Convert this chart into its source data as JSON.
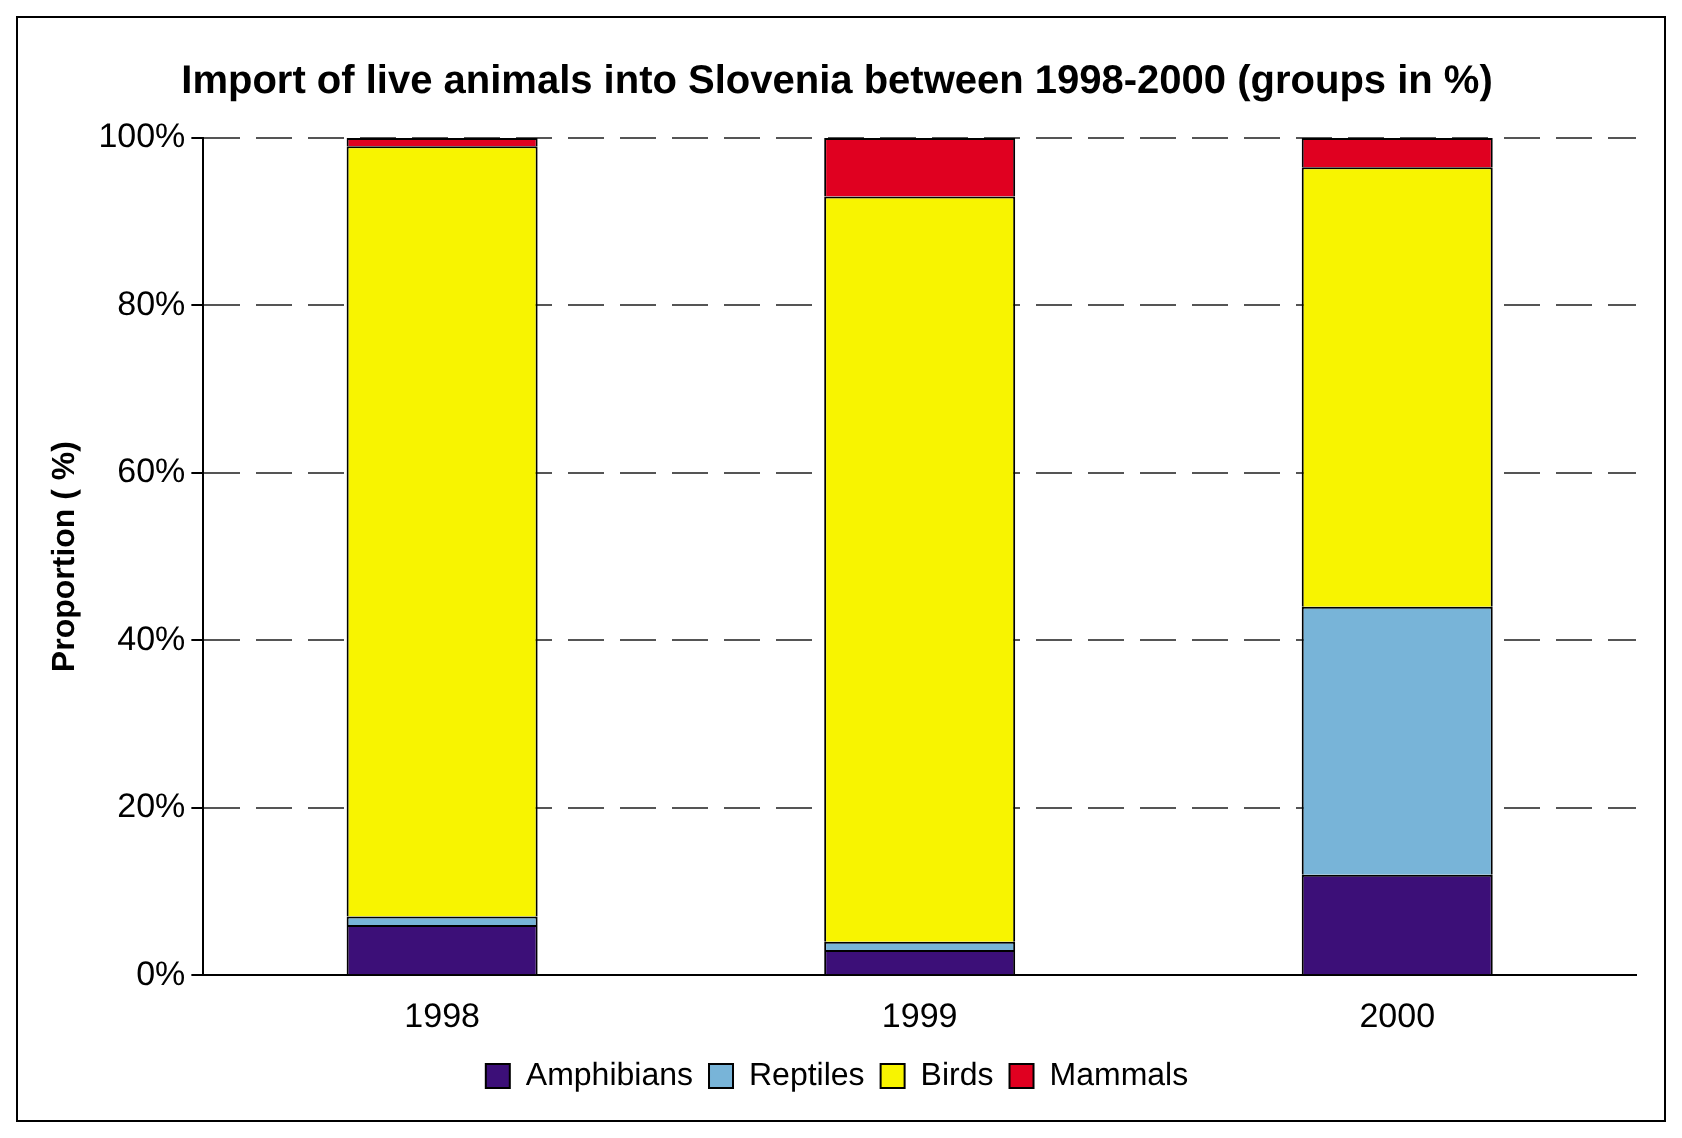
{
  "chart_data": {
    "type": "bar",
    "title": "Import of live animals into Slovenia between 1998-2000 (groups in %)",
    "ylabel": "Proportion ( %)",
    "categories": [
      "1998",
      "1999",
      "2000"
    ],
    "stacked": true,
    "series": [
      {
        "name": "Amphibians",
        "color": "#3c0f78",
        "values": [
          6,
          3,
          12
        ]
      },
      {
        "name": "Reptiles",
        "color": "#78b4d8",
        "values": [
          1,
          1,
          32
        ]
      },
      {
        "name": "Birds",
        "color": "#f8f400",
        "values": [
          92,
          89,
          52.5
        ]
      },
      {
        "name": "Mammals",
        "color": "#e00020",
        "values": [
          1,
          7,
          3.5
        ]
      }
    ],
    "ylim": [
      0,
      100
    ],
    "yticks": [
      {
        "value": 0,
        "label": "0%"
      },
      {
        "value": 20,
        "label": "20%"
      },
      {
        "value": 40,
        "label": "40%"
      },
      {
        "value": 60,
        "label": "60%"
      },
      {
        "value": 80,
        "label": "80%"
      },
      {
        "value": 100,
        "label": "100%"
      }
    ],
    "grid": "y",
    "legend": "bottom"
  }
}
